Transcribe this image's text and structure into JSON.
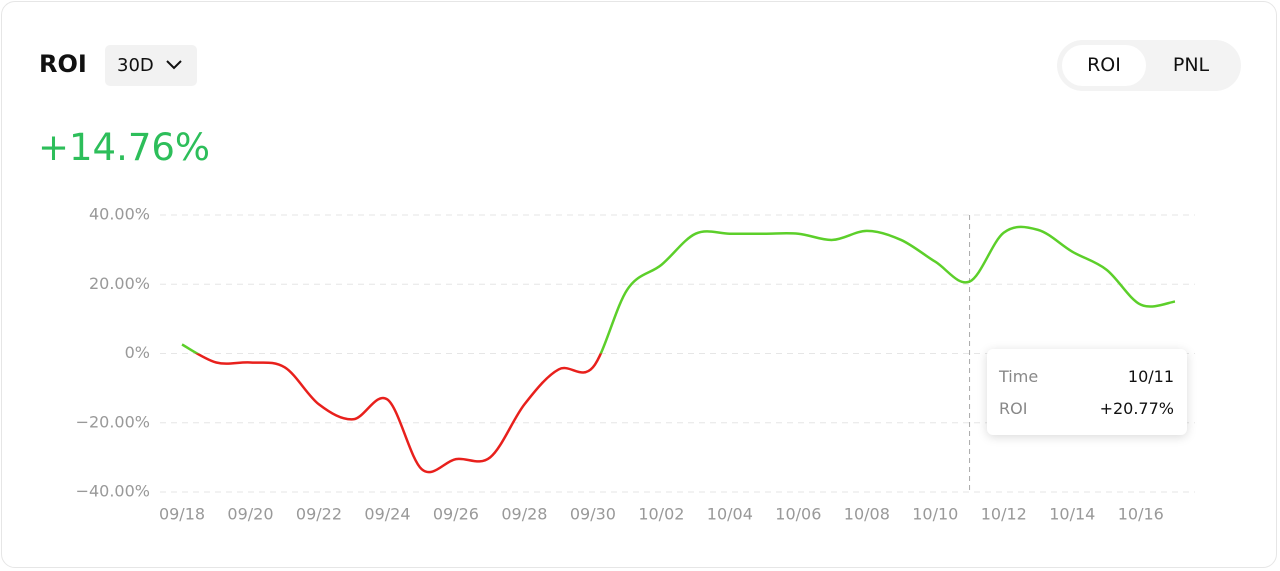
{
  "header": {
    "title": "ROI",
    "period": "30D",
    "tabs": [
      "ROI",
      "PNL"
    ],
    "value": "+14.76%"
  },
  "chart_data": {
    "type": "line",
    "categories": [
      "09/18",
      null,
      "09/20",
      null,
      "09/22",
      null,
      "09/24",
      null,
      "09/26",
      null,
      "09/28",
      null,
      "09/30",
      null,
      "10/02",
      null,
      "10/04",
      null,
      "10/06",
      null,
      "10/08",
      null,
      "10/10",
      null,
      "10/12",
      null,
      "10/14",
      null,
      "10/16",
      null
    ],
    "series": [
      {
        "name": "ROI",
        "color": "#5ccf2a",
        "negative_color": "#e8201c",
        "values": [
          2.6,
          -2.6,
          -2.6,
          -4,
          -14.7,
          -19,
          -13.3,
          -33.4,
          -30.5,
          -30,
          -14.7,
          -4.6,
          -4,
          18.4,
          25.6,
          34.6,
          34.6,
          34.6,
          34.6,
          32.8,
          35.4,
          32.8,
          26.5,
          20.77,
          34.9,
          35.7,
          29.4,
          24.2,
          14.1,
          15
        ]
      }
    ],
    "ylim": [
      -40,
      40
    ],
    "yticks": [
      {
        "value": -40,
        "label": "−40.00%"
      },
      {
        "value": -20,
        "label": "−20.00%"
      },
      {
        "value": 0,
        "label": "0%"
      },
      {
        "value": 20,
        "label": "20.00%"
      },
      {
        "value": 40,
        "label": "40.00%"
      }
    ],
    "grid": true,
    "tooltip": {
      "time_label": "Time",
      "time": "10/11",
      "value_label": "ROI",
      "value": "+20.77%",
      "index": 23
    }
  }
}
